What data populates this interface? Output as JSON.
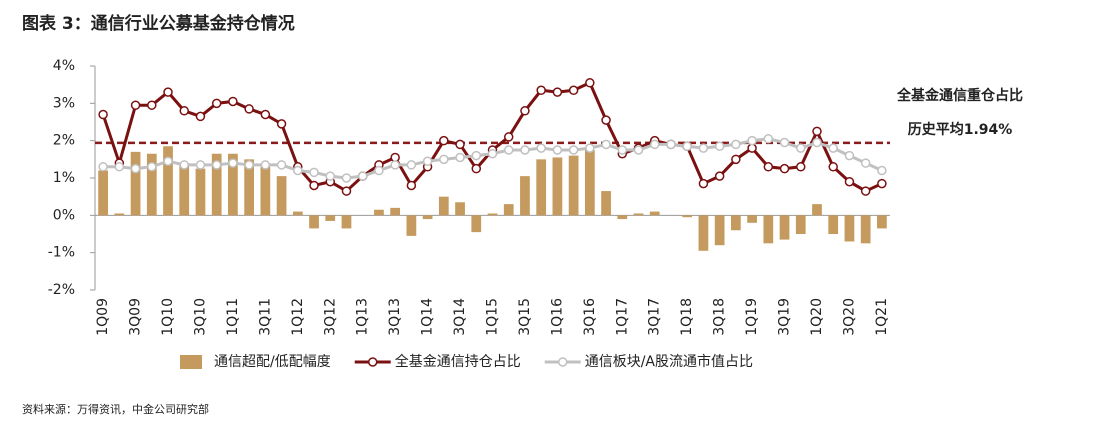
{
  "chart_data": {
    "type": "bar-line",
    "title": "图表 3：通信行业公募基金持仓情况",
    "categories": [
      "1Q09",
      null,
      "3Q09",
      null,
      "1Q10",
      null,
      "3Q10",
      null,
      "1Q11",
      null,
      "3Q11",
      null,
      "1Q12",
      null,
      "3Q12",
      null,
      "1Q13",
      null,
      "3Q13",
      null,
      "1Q14",
      null,
      "3Q14",
      null,
      "1Q15",
      null,
      "3Q15",
      null,
      "1Q16",
      null,
      "3Q16",
      null,
      "1Q17",
      null,
      "3Q17",
      null,
      "1Q18",
      null,
      "3Q18",
      null,
      "1Q19",
      null,
      "3Q19",
      null,
      "1Q20",
      null,
      "3Q20",
      null,
      "1Q21"
    ],
    "series": [
      {
        "name": "通信超配/低配幅度",
        "type": "bar",
        "color": "#c49a5e",
        "values": [
          1.2,
          0.05,
          1.7,
          1.65,
          1.85,
          1.4,
          1.25,
          1.65,
          1.65,
          1.5,
          1.3,
          1.05,
          0.1,
          -0.35,
          -0.15,
          -0.35,
          0,
          0.15,
          0.2,
          -0.55,
          -0.1,
          0.5,
          0.35,
          -0.45,
          0.05,
          0.3,
          1.05,
          1.5,
          1.55,
          1.6,
          1.75,
          0.65,
          -0.1,
          0.05,
          0.1,
          0,
          -0.05,
          -0.95,
          -0.8,
          -0.4,
          -0.2,
          -0.75,
          -0.65,
          -0.5,
          0.3,
          -0.5,
          -0.7,
          -0.75,
          -0.35
        ]
      },
      {
        "name": "全基金通信持仓占比",
        "type": "line",
        "color": "#7a1010",
        "values": [
          2.7,
          1.4,
          2.95,
          2.95,
          3.3,
          2.8,
          2.65,
          3.0,
          3.05,
          2.85,
          2.7,
          2.45,
          1.3,
          0.8,
          0.9,
          0.65,
          1.05,
          1.35,
          1.55,
          0.8,
          1.3,
          2.0,
          1.9,
          1.25,
          1.75,
          2.1,
          2.8,
          3.35,
          3.3,
          3.35,
          3.55,
          2.55,
          1.65,
          1.8,
          2.0,
          1.9,
          1.85,
          0.85,
          1.05,
          1.5,
          1.8,
          1.3,
          1.25,
          1.3,
          2.25,
          1.3,
          0.9,
          0.65,
          0.85
        ]
      },
      {
        "name": "通信板块/A股流通市值占比",
        "type": "line",
        "color": "#c0c0c0",
        "values": [
          1.3,
          1.3,
          1.25,
          1.3,
          1.45,
          1.35,
          1.35,
          1.35,
          1.4,
          1.35,
          1.35,
          1.35,
          1.2,
          1.15,
          1.05,
          1.0,
          1.05,
          1.2,
          1.35,
          1.35,
          1.45,
          1.5,
          1.55,
          1.6,
          1.65,
          1.75,
          1.75,
          1.8,
          1.75,
          1.75,
          1.8,
          1.9,
          1.75,
          1.75,
          1.9,
          1.9,
          1.85,
          1.8,
          1.85,
          1.9,
          2.0,
          2.05,
          1.95,
          1.8,
          1.95,
          1.8,
          1.6,
          1.4,
          1.2
        ]
      }
    ],
    "reference_line": {
      "value": 1.94,
      "label": "历史平均1.94%",
      "color": "#8b1a1a"
    },
    "annotation": "全基金通信重仓占比",
    "ylim": [
      -2,
      4
    ],
    "yticks": [
      {
        "value": -2,
        "label": "-2%"
      },
      {
        "value": -1,
        "label": "-1%"
      },
      {
        "value": 0,
        "label": "0%"
      },
      {
        "value": 1,
        "label": "1%"
      },
      {
        "value": 2,
        "label": "2%"
      },
      {
        "value": 3,
        "label": "3%"
      },
      {
        "value": 4,
        "label": "4%"
      }
    ],
    "source": "资料来源：万得资讯，中金公司研究部"
  }
}
